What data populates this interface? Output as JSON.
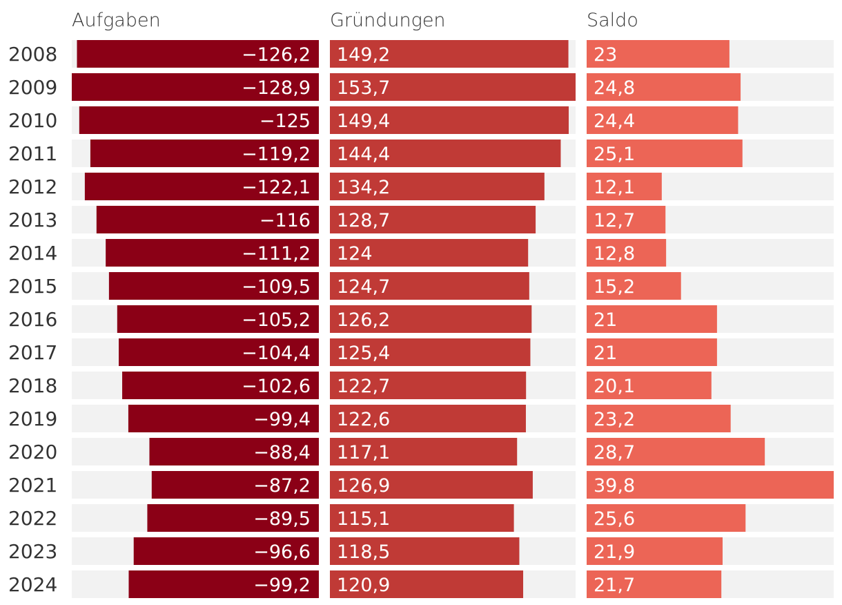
{
  "chart_data": {
    "type": "bar",
    "categories": [
      "2008",
      "2009",
      "2010",
      "2011",
      "2012",
      "2013",
      "2014",
      "2015",
      "2016",
      "2017",
      "2018",
      "2019",
      "2020",
      "2021",
      "2022",
      "2023",
      "2024"
    ],
    "series": [
      {
        "name": "Aufgaben",
        "color": "#8b0016",
        "values": [
          -126.2,
          -128.9,
          -125,
          -119.2,
          -122.1,
          -116,
          -111.2,
          -109.5,
          -105.2,
          -104.4,
          -102.6,
          -99.4,
          -88.4,
          -87.2,
          -89.5,
          -96.6,
          -99.2
        ],
        "labels": [
          "−126,2",
          "−128,9",
          "−125",
          "−119,2",
          "−122,1",
          "−116",
          "−111,2",
          "−109,5",
          "−105,2",
          "−104,4",
          "−102,6",
          "−99,4",
          "−88,4",
          "−87,2",
          "−89,5",
          "−96,6",
          "−99,2"
        ]
      },
      {
        "name": "Gründungen",
        "color": "#c03a36",
        "values": [
          149.2,
          153.7,
          149.4,
          144.4,
          134.2,
          128.7,
          124,
          124.7,
          126.2,
          125.4,
          122.7,
          122.6,
          117.1,
          126.9,
          115.1,
          118.5,
          120.9
        ],
        "labels": [
          "149,2",
          "153,7",
          "149,4",
          "144,4",
          "134,2",
          "128,7",
          "124",
          "124,7",
          "126,2",
          "125,4",
          "122,7",
          "122,6",
          "117,1",
          "126,9",
          "115,1",
          "118,5",
          "120,9"
        ]
      },
      {
        "name": "Saldo",
        "color": "#ec6556",
        "values": [
          23,
          24.8,
          24.4,
          25.1,
          12.1,
          12.7,
          12.8,
          15.2,
          21,
          21,
          20.1,
          23.2,
          28.7,
          39.8,
          25.6,
          21.9,
          21.7
        ],
        "labels": [
          "23",
          "24,8",
          "24,4",
          "25,1",
          "12,1",
          "12,7",
          "12,8",
          "15,2",
          "21",
          "21",
          "20,1",
          "23,2",
          "28,7",
          "39,8",
          "25,6",
          "21,9",
          "21,7"
        ]
      }
    ],
    "track_color": "#f2f2f2"
  }
}
